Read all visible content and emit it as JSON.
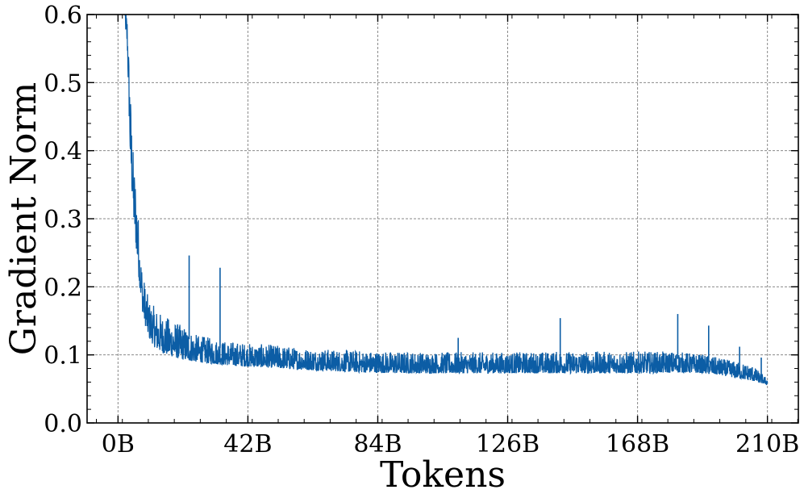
{
  "chart_data": {
    "type": "line",
    "title": "",
    "xlabel": "Tokens",
    "ylabel": "Gradient Norm",
    "xlim": [
      -10,
      220
    ],
    "ylim": [
      0.0,
      0.6
    ],
    "x_unit": "B tokens",
    "x_ticks": [
      0,
      42,
      84,
      126,
      168,
      210
    ],
    "x_tick_labels": [
      "0B",
      "42B",
      "84B",
      "126B",
      "168B",
      "210B"
    ],
    "y_ticks": [
      0.0,
      0.1,
      0.2,
      0.3,
      0.4,
      0.5,
      0.6
    ],
    "y_tick_labels": [
      "0.0",
      "0.1",
      "0.2",
      "0.3",
      "0.4",
      "0.5",
      "0.6"
    ],
    "grid": true,
    "legend": "none",
    "series": [
      {
        "color": "#0c5da5",
        "x": [
          2,
          3,
          4,
          5,
          6,
          7,
          8,
          9,
          10,
          12,
          14,
          16,
          18,
          20,
          22,
          25,
          30,
          35,
          40,
          45,
          50,
          60,
          70,
          80,
          90,
          100,
          110,
          120,
          130,
          140,
          150,
          160,
          170,
          180,
          185,
          190,
          195,
          200,
          205,
          210
        ],
        "upper": [
          0.62,
          0.6,
          0.49,
          0.39,
          0.35,
          0.27,
          0.22,
          0.2,
          0.18,
          0.17,
          0.16,
          0.155,
          0.15,
          0.145,
          0.14,
          0.13,
          0.125,
          0.12,
          0.118,
          0.116,
          0.115,
          0.11,
          0.108,
          0.106,
          0.105,
          0.104,
          0.104,
          0.104,
          0.104,
          0.105,
          0.105,
          0.105,
          0.105,
          0.105,
          0.103,
          0.1,
          0.095,
          0.09,
          0.085,
          0.065
        ],
        "lower": [
          0.6,
          0.55,
          0.38,
          0.3,
          0.25,
          0.2,
          0.16,
          0.14,
          0.125,
          0.11,
          0.104,
          0.1,
          0.097,
          0.094,
          0.092,
          0.09,
          0.087,
          0.085,
          0.083,
          0.082,
          0.081,
          0.078,
          0.076,
          0.074,
          0.073,
          0.073,
          0.073,
          0.073,
          0.073,
          0.073,
          0.073,
          0.073,
          0.073,
          0.074,
          0.074,
          0.073,
          0.07,
          0.066,
          0.062,
          0.056
        ],
        "spikes": [
          {
            "x": 23,
            "y": 0.246
          },
          {
            "x": 33,
            "y": 0.228
          },
          {
            "x": 110,
            "y": 0.125
          },
          {
            "x": 143,
            "y": 0.154
          },
          {
            "x": 181,
            "y": 0.16
          },
          {
            "x": 191,
            "y": 0.143
          },
          {
            "x": 201,
            "y": 0.112
          },
          {
            "x": 208,
            "y": 0.096
          }
        ]
      }
    ]
  }
}
